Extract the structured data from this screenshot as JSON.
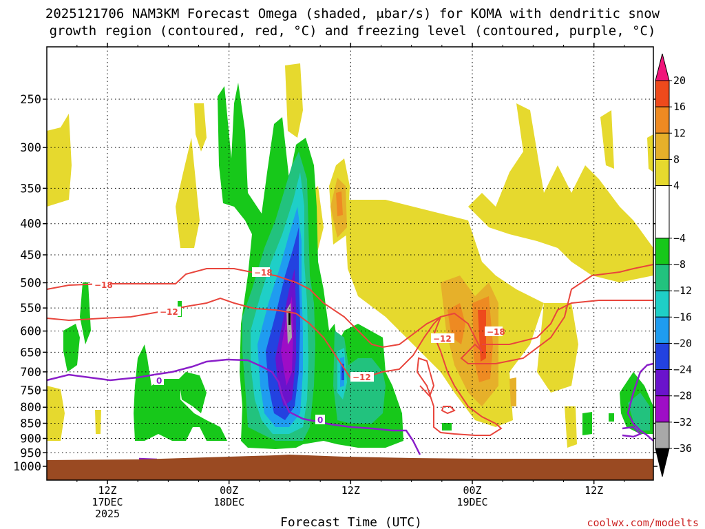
{
  "chart_data": {
    "type": "heatmap",
    "title_line1": "2025121706 NAM3KM Forecast Omega (shaded, μbar/s) for KOMA with dendritic snow",
    "title_line2": "growth region (contoured, red, °C) and freezing level (contoured, purple, °C)",
    "xlabel": "Forecast Time (UTC)",
    "ylabel": "",
    "credit": "coolwx.com/modelts",
    "y_ticks": [
      "250",
      "300",
      "350",
      "400",
      "450",
      "500",
      "550",
      "600",
      "650",
      "700",
      "750",
      "800",
      "850",
      "900",
      "950",
      "1000"
    ],
    "y_values": [
      250,
      300,
      350,
      400,
      450,
      500,
      550,
      600,
      650,
      700,
      750,
      800,
      850,
      900,
      950,
      1000
    ],
    "x_ticks": [
      {
        "hour": 6,
        "lines": [
          "12Z",
          "17DEC",
          "2025"
        ]
      },
      {
        "hour": 18,
        "lines": [
          "00Z",
          "18DEC"
        ]
      },
      {
        "hour": 30,
        "lines": [
          "12Z"
        ]
      },
      {
        "hour": 42,
        "lines": [
          "00Z",
          "19DEC"
        ]
      },
      {
        "hour": 54,
        "lines": [
          "12Z"
        ]
      }
    ],
    "x_range_hours": [
      0,
      60
    ],
    "colorbar": {
      "labels": [
        "20",
        "16",
        "12",
        "8",
        "4",
        "−4",
        "−8",
        "−12",
        "−16",
        "−20",
        "−24",
        "−28",
        "−32",
        "−36"
      ],
      "values": [
        20,
        16,
        12,
        8,
        4,
        -4,
        -8,
        -12,
        -16,
        -20,
        -24,
        -28,
        -32,
        -36
      ],
      "colors": {
        "gt20": "#f0157a",
        "16_20": "#ee4a1c",
        "12_16": "#ee8a22",
        "8_12": "#e6b02a",
        "4_8": "#e6d92e",
        "-4_4": "#ffffff",
        "-8_-4": "#17c81a",
        "-12_-8": "#22c27e",
        "-16_-12": "#1fcfc7",
        "-20_-16": "#1f9cf0",
        "-24_-20": "#2342e0",
        "-28_-24": "#6a13cc",
        "-32_-28": "#9e0dc6",
        "-36_-32": "#a8a8a8",
        "lt-36": "#000000"
      }
    },
    "contour_labels": {
      "red": [
        "−18",
        "−12",
        "−18",
        "−12",
        "−12",
        "−18"
      ],
      "purple": [
        "0",
        "0"
      ]
    },
    "colors": {
      "ground": "#9a4a22",
      "red_contour": "#e8453c",
      "purple_contour": "#8a1fc9"
    }
  }
}
